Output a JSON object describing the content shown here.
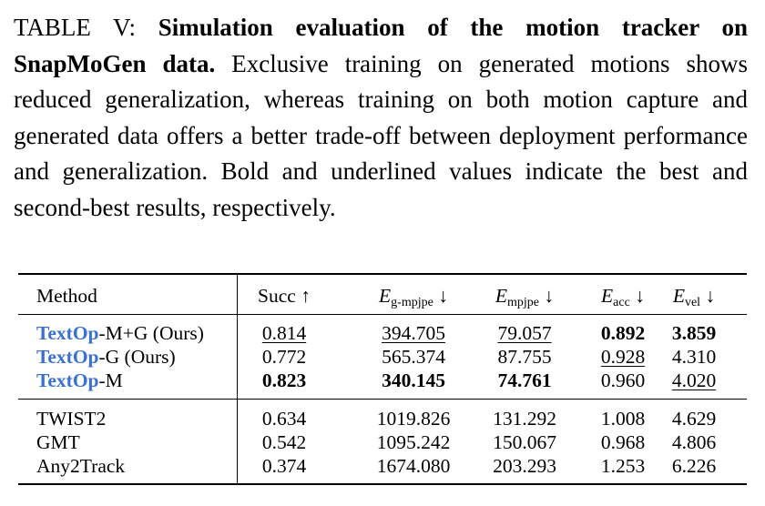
{
  "caption": {
    "label": "TABLE V:",
    "title": "Simulation evaluation of the motion tracker on SnapMoGen data.",
    "body": "Exclusive training on generated motions shows reduced generalization, whereas training on both motion capture and generated data offers a better trade-off between deployment performance and generalization. Bold and underlined values indicate the best and second-best results, respectively."
  },
  "table": {
    "headers": {
      "method": "Method",
      "succ": "Succ ↑",
      "e_g_mpjpe": {
        "symbol": "E",
        "sub": "g-mpjpe",
        "arrow": "↓"
      },
      "e_mpjpe": {
        "symbol": "E",
        "sub": "mpjpe",
        "arrow": "↓"
      },
      "e_acc": {
        "symbol": "E",
        "sub": "acc",
        "arrow": "↓"
      },
      "e_vel": {
        "symbol": "E",
        "sub": "vel",
        "arrow": "↓"
      }
    },
    "group1": [
      {
        "brand": "TextOp",
        "suffix": "-M+G (Ours)",
        "succ": "0.814",
        "g_mpjpe": "394.705",
        "mpjpe": "79.057",
        "acc": "0.892",
        "vel": "3.859"
      },
      {
        "brand": "TextOp",
        "suffix": "-G (Ours)",
        "succ": "0.772",
        "g_mpjpe": "565.374",
        "mpjpe": "87.755",
        "acc": "0.928",
        "vel": "4.310"
      },
      {
        "brand": "TextOp",
        "suffix": "-M",
        "succ": "0.823",
        "g_mpjpe": "340.145",
        "mpjpe": "74.761",
        "acc": "0.960",
        "vel": "4.020"
      }
    ],
    "group2": [
      {
        "method": "TWIST2",
        "succ": "0.634",
        "g_mpjpe": "1019.826",
        "mpjpe": "131.292",
        "acc": "1.008",
        "vel": "4.629"
      },
      {
        "method": "GMT",
        "succ": "0.542",
        "g_mpjpe": "1095.242",
        "mpjpe": "150.067",
        "acc": "0.968",
        "vel": "4.806"
      },
      {
        "method": "Any2Track",
        "succ": "0.374",
        "g_mpjpe": "1674.080",
        "mpjpe": "203.293",
        "acc": "1.253",
        "vel": "6.226"
      }
    ]
  },
  "colors": {
    "brand": "#3a6fd3"
  }
}
